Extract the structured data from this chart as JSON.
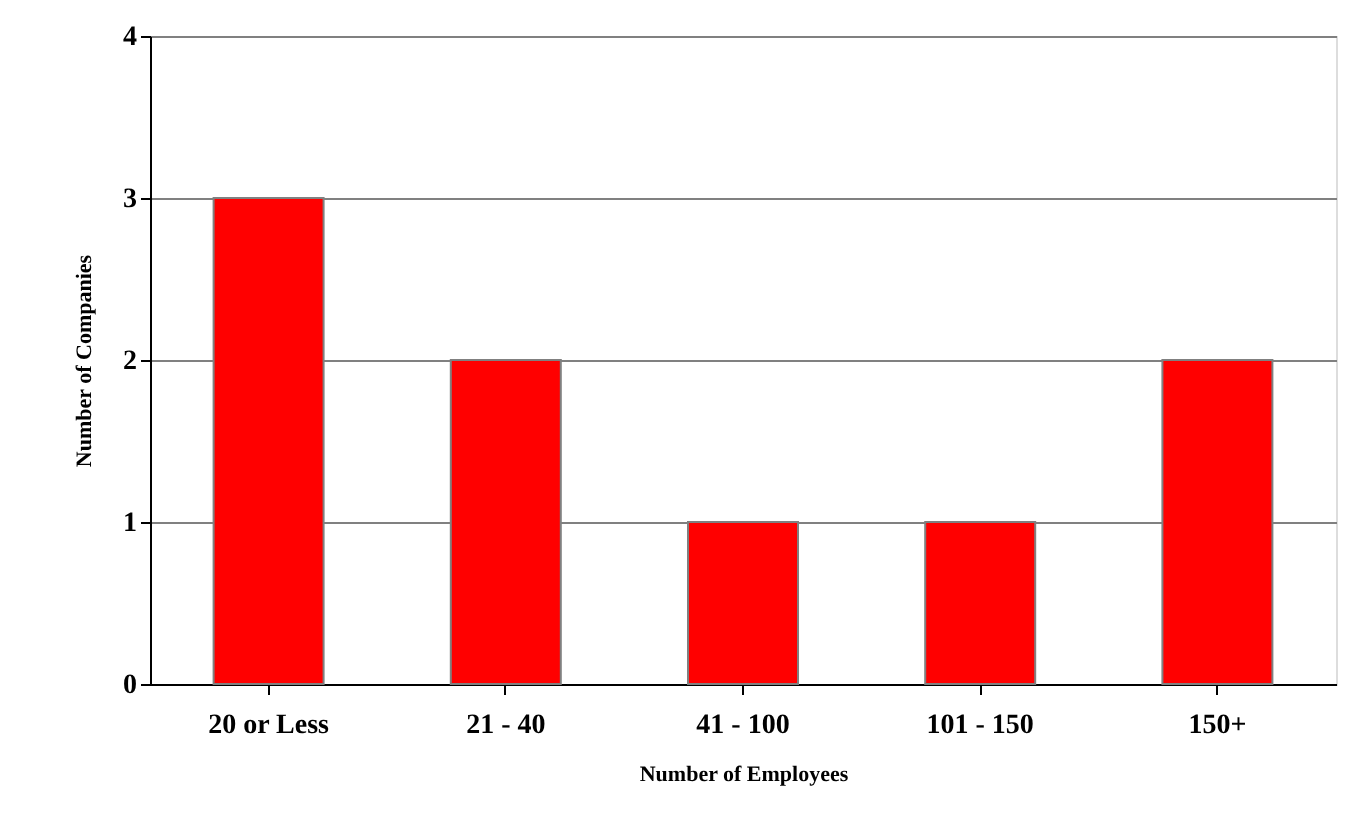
{
  "chart_data": {
    "type": "bar",
    "xlabel": "Number of Employees",
    "ylabel": "Number of Companies",
    "categories": [
      "20 or Less",
      "21 - 40",
      "41 - 100",
      "101 - 150",
      "150+"
    ],
    "values": [
      3,
      2,
      1,
      1,
      2
    ],
    "color": "#ff0000",
    "ylim": [
      0,
      4
    ],
    "yticks": [
      0,
      1,
      2,
      3,
      4
    ],
    "grid": "y"
  }
}
